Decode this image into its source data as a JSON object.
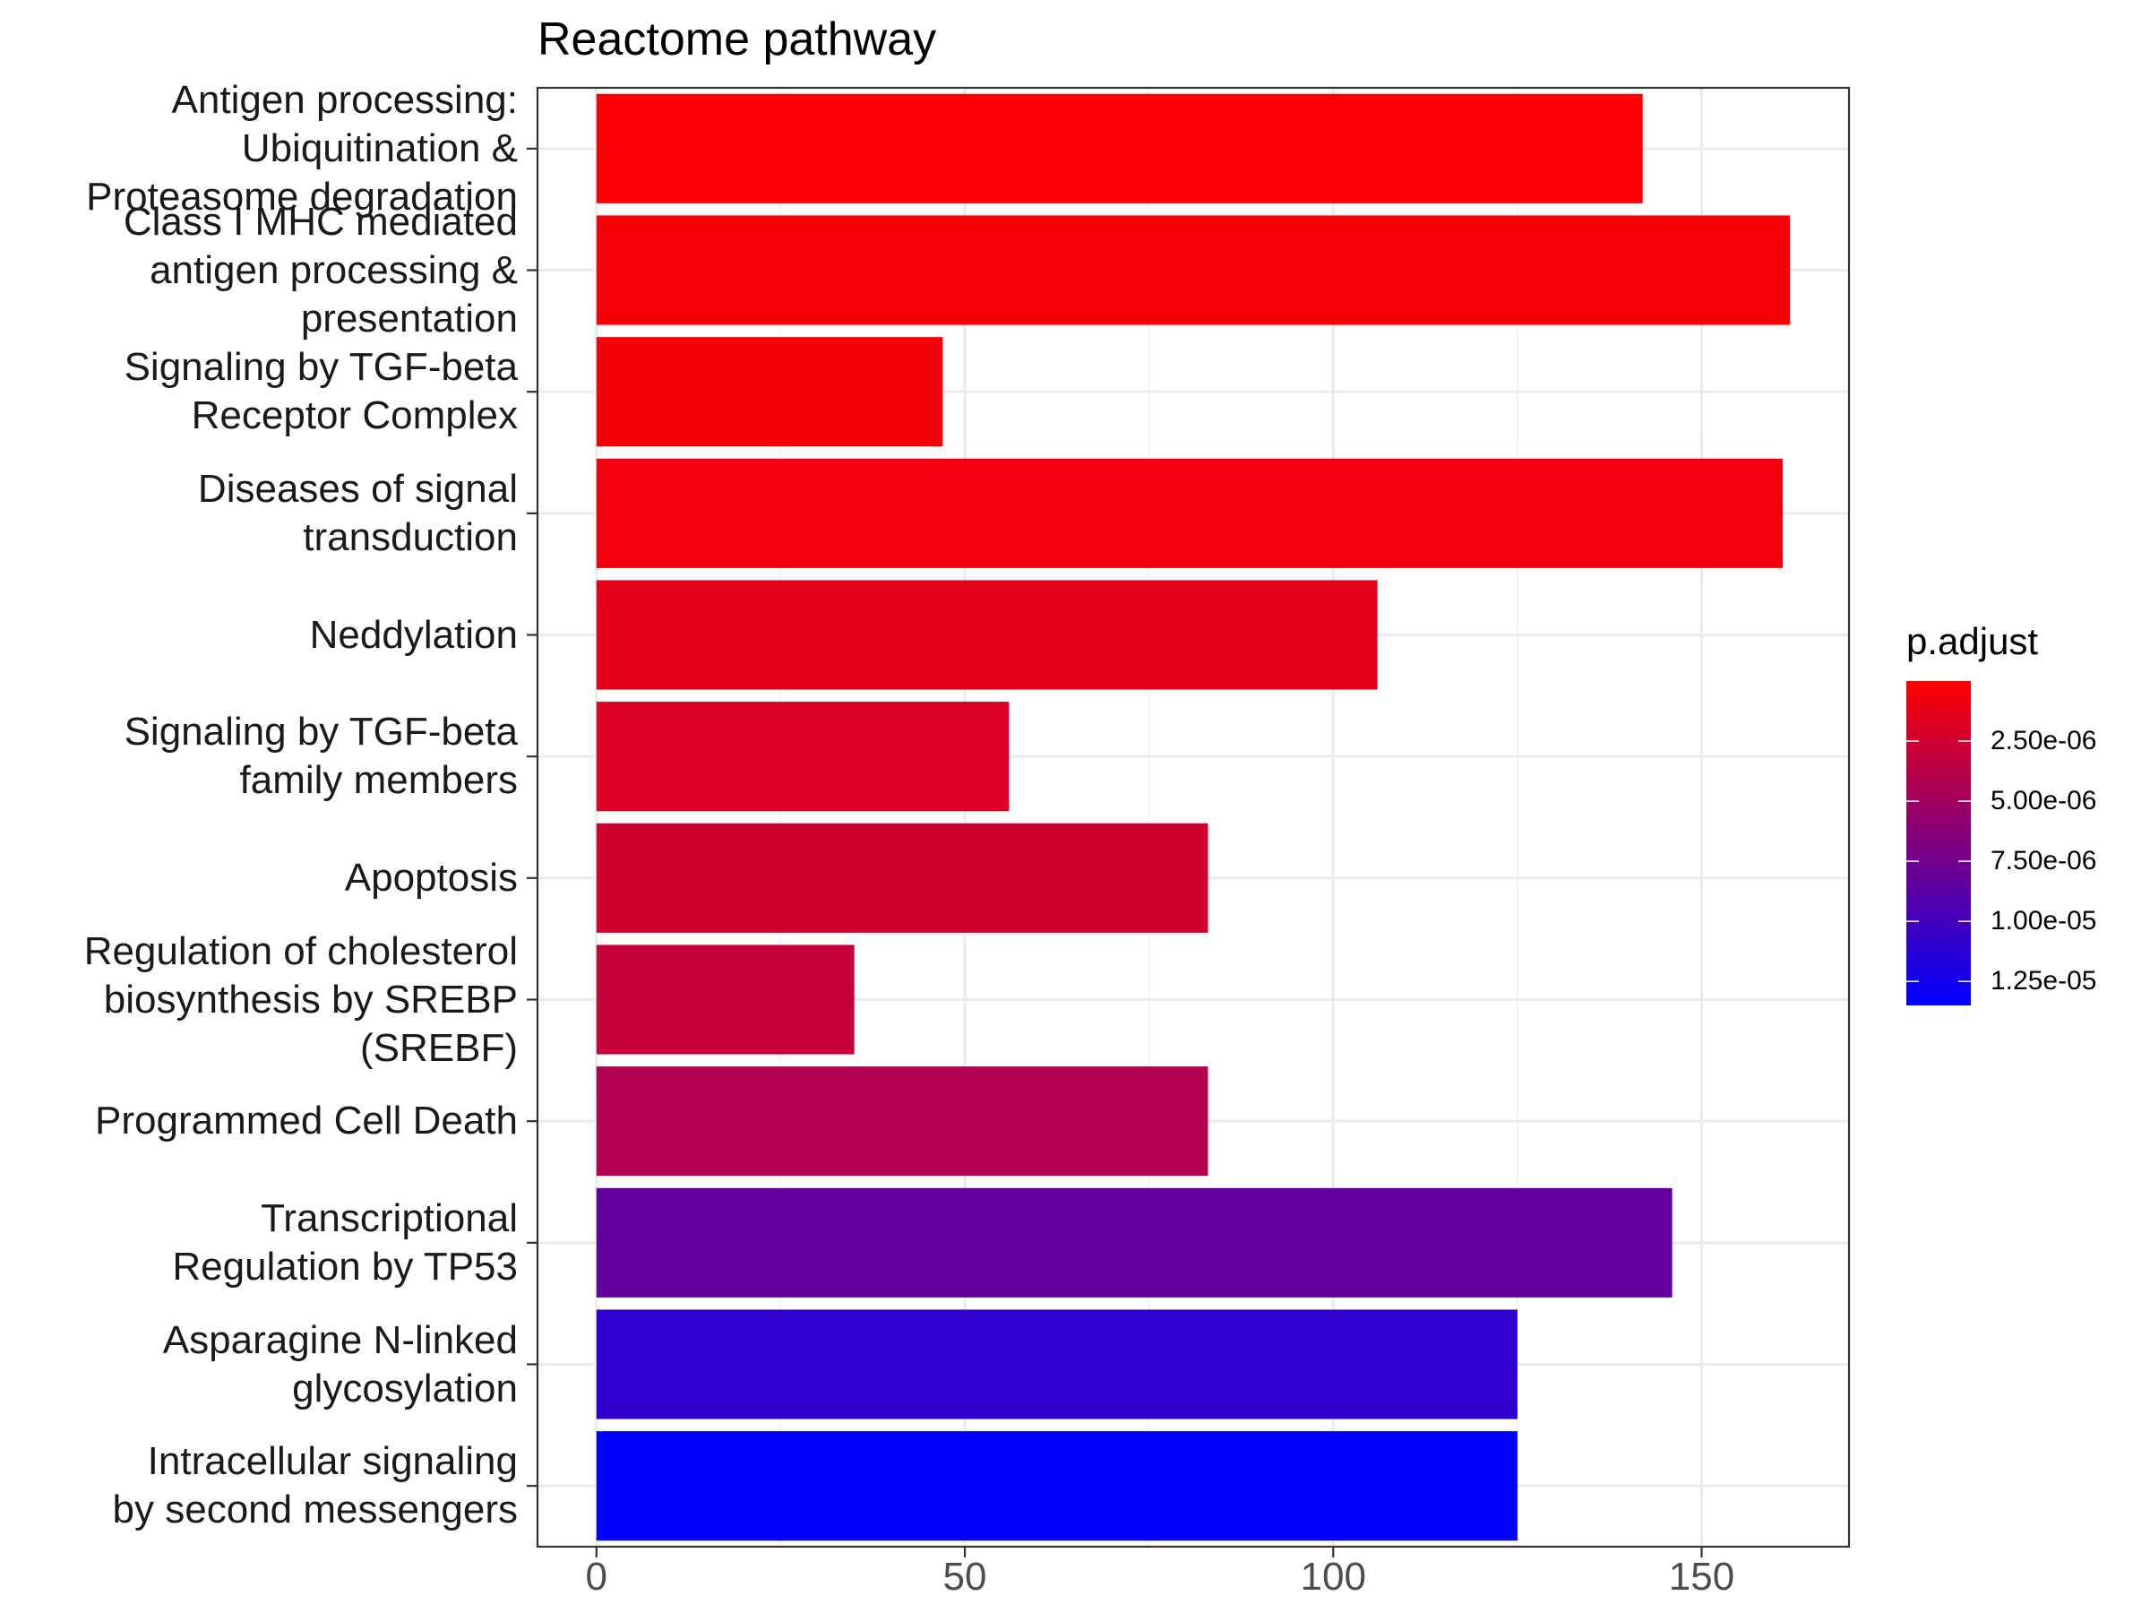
{
  "chart_data": {
    "type": "bar",
    "orientation": "horizontal",
    "title": "Reactome pathway",
    "xlabel": "",
    "ylabel": "",
    "xlim": [
      -8,
      170
    ],
    "x_ticks": [
      0,
      50,
      100,
      150
    ],
    "grid": true,
    "categories": [
      "Antigen processing:\nUbiquitination &\nProteasome degradation",
      "Class I MHC mediated\nantigen processing &\npresentation",
      "Signaling by TGF-beta\nReceptor Complex",
      "Diseases of signal\ntransduction",
      "Neddylation",
      "Signaling by TGF-beta\nfamily members",
      "Apoptosis",
      "Regulation of cholesterol\nbiosynthesis by SREBP\n(SREBF)",
      "Programmed Cell Death",
      "Transcriptional\nRegulation by TP53",
      "Asparagine N-linked\nglycosylation",
      "Intracellular signaling\nby second messengers"
    ],
    "values": [
      142,
      162,
      47,
      161,
      106,
      56,
      83,
      35,
      83,
      146,
      125,
      125
    ],
    "p_adjust": [
      2e-07,
      3e-07,
      5e-07,
      7e-07,
      1.4e-06,
      1.9e-06,
      2.5e-06,
      3e-06,
      4.2e-06,
      8.3e-06,
      1.1e-05,
      1.35e-05
    ],
    "legend": {
      "title": "p.adjust",
      "position": "right",
      "ticks": [
        "2.50e-06",
        "5.00e-06",
        "7.50e-06",
        "1.00e-05",
        "1.25e-05"
      ],
      "tick_values": [
        2.5e-06,
        5e-06,
        7.5e-06,
        1e-05,
        1.25e-05
      ],
      "range": [
        0,
        1.35e-05
      ],
      "color_low": "#FF0000",
      "color_high": "#0000FF"
    }
  }
}
